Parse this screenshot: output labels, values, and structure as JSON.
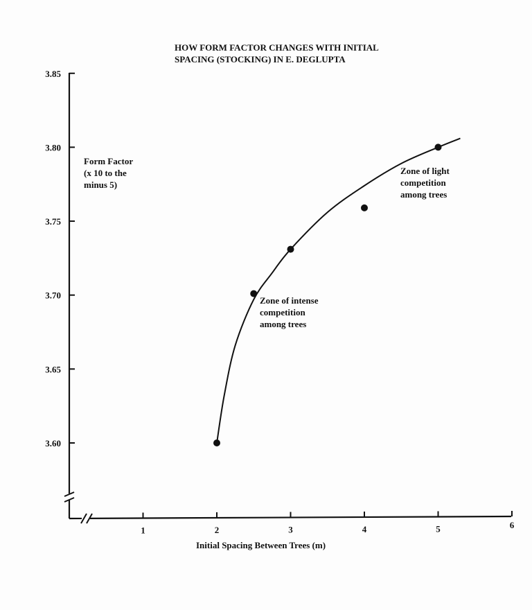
{
  "title_lines": [
    "HOW FORM FACTOR CHANGES WITH INITIAL",
    "SPACING (STOCKING) IN E. DEGLUPTA"
  ],
  "ylabel_lines": [
    "Form Factor",
    "(x 10 to the",
    "minus 5)"
  ],
  "xlabel": "Initial Spacing Between Trees (m)",
  "annotations": {
    "light": [
      "Zone of light",
      "competition",
      "among trees"
    ],
    "intense": [
      "Zone of intense",
      "competition",
      "among trees"
    ]
  },
  "chart_data": {
    "type": "scatter",
    "title": "HOW FORM FACTOR CHANGES WITH INITIAL SPACING (STOCKING) IN E. DEGLUPTA",
    "xlabel": "Initial Spacing Between Trees (m)",
    "ylabel": "Form Factor (x 10 to the minus 5)",
    "xlim": [
      0,
      6
    ],
    "ylim": [
      3.55,
      3.85
    ],
    "x_ticks": [
      1,
      2,
      3,
      4,
      5,
      6
    ],
    "y_ticks": [
      3.6,
      3.65,
      3.7,
      3.75,
      3.8,
      3.85
    ],
    "x_tick_labels": [
      "1",
      "2",
      "3",
      "4",
      "5",
      "6"
    ],
    "y_tick_labels": [
      "3.60",
      "3.65",
      "3.70",
      "3.75",
      "3.80",
      "3.85"
    ],
    "axis_breaks": true,
    "grid": false,
    "points": [
      {
        "x": 2.0,
        "y": 3.6
      },
      {
        "x": 2.5,
        "y": 3.701
      },
      {
        "x": 3.0,
        "y": 3.731
      },
      {
        "x": 4.0,
        "y": 3.759
      },
      {
        "x": 5.0,
        "y": 3.8
      }
    ],
    "trend_curve": [
      {
        "x": 2.0,
        "y": 3.6
      },
      {
        "x": 2.1,
        "y": 3.632
      },
      {
        "x": 2.25,
        "y": 3.666
      },
      {
        "x": 2.5,
        "y": 3.697
      },
      {
        "x": 2.75,
        "y": 3.715
      },
      {
        "x": 3.0,
        "y": 3.731
      },
      {
        "x": 3.5,
        "y": 3.756
      },
      {
        "x": 4.0,
        "y": 3.774
      },
      {
        "x": 4.5,
        "y": 3.789
      },
      {
        "x": 5.0,
        "y": 3.8
      },
      {
        "x": 5.3,
        "y": 3.806
      }
    ],
    "colors": {
      "ink": "#111111",
      "paper": "#fdfdfd"
    }
  }
}
